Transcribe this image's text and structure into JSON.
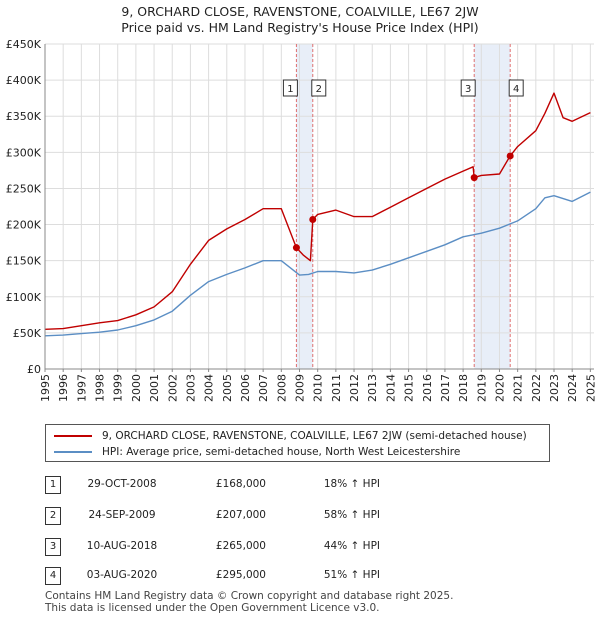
{
  "title_line1": "9, ORCHARD CLOSE, RAVENSTONE, COALVILLE, LE67 2JW",
  "title_line2": "Price paid vs. HM Land Registry's House Price Index (HPI)",
  "colors": {
    "property": "#c00000",
    "hpi": "#5b8ec4",
    "grid": "#dddddd",
    "marker_line": "#e07070",
    "shade": "#e8eef8"
  },
  "legend": {
    "property_label": "9, ORCHARD CLOSE, RAVENSTONE, COALVILLE, LE67 2JW (semi-detached house)",
    "hpi_label": "HPI: Average price, semi-detached house, North West Leicestershire"
  },
  "transactions": [
    {
      "num": "1",
      "date": "29-OCT-2008",
      "price": "£168,000",
      "hpi": "18% ↑ HPI"
    },
    {
      "num": "2",
      "date": "24-SEP-2009",
      "price": "£207,000",
      "hpi": "58% ↑ HPI"
    },
    {
      "num": "3",
      "date": "10-AUG-2018",
      "price": "£265,000",
      "hpi": "44% ↑ HPI"
    },
    {
      "num": "4",
      "date": "03-AUG-2020",
      "price": "£295,000",
      "hpi": "51% ↑ HPI"
    }
  ],
  "footer_line1": "Contains HM Land Registry data © Crown copyright and database right 2025.",
  "footer_line2": "This data is licensed under the Open Government Licence v3.0.",
  "chart_data": {
    "type": "line",
    "title": "9, ORCHARD CLOSE, RAVENSTONE, COALVILLE, LE67 2JW",
    "subtitle": "Price paid vs. HM Land Registry's House Price Index (HPI)",
    "xlabel": "",
    "ylabel": "",
    "xlim": [
      1995,
      2025.2
    ],
    "ylim": [
      0,
      450000
    ],
    "x_ticks": [
      1995,
      1996,
      1997,
      1998,
      1999,
      2000,
      2001,
      2002,
      2003,
      2004,
      2005,
      2006,
      2007,
      2008,
      2009,
      2010,
      2011,
      2012,
      2013,
      2014,
      2015,
      2016,
      2017,
      2018,
      2019,
      2020,
      2021,
      2022,
      2023,
      2024,
      2025
    ],
    "y_ticks": [
      0,
      50000,
      100000,
      150000,
      200000,
      250000,
      300000,
      350000,
      400000,
      450000
    ],
    "y_tick_labels": [
      "£0",
      "£50K",
      "£100K",
      "£150K",
      "£200K",
      "£250K",
      "£300K",
      "£350K",
      "£400K",
      "£450K"
    ],
    "grid": true,
    "sale_markers": [
      {
        "label": "1",
        "x": 2008.83,
        "y": 168000
      },
      {
        "label": "2",
        "x": 2009.73,
        "y": 207000
      },
      {
        "label": "3",
        "x": 2018.61,
        "y": 265000
      },
      {
        "label": "4",
        "x": 2020.59,
        "y": 295000
      }
    ],
    "shaded_ranges": [
      [
        2008.83,
        2009.73
      ],
      [
        2018.61,
        2020.59
      ]
    ],
    "series": [
      {
        "name": "9, ORCHARD CLOSE, RAVENSTONE, COALVILLE, LE67 2JW (semi-detached house)",
        "x": [
          1995,
          1996,
          1997,
          1998,
          1999,
          2000,
          2001,
          2002,
          2003,
          2004,
          2005,
          2006,
          2007,
          2008,
          2008.83,
          2009.2,
          2009.6,
          2009.73,
          2010,
          2011,
          2012,
          2013,
          2014,
          2015,
          2016,
          2017,
          2018,
          2018.55,
          2018.61,
          2019,
          2020,
          2020.59,
          2021,
          2022,
          2022.5,
          2023,
          2023.5,
          2024,
          2025
        ],
        "values": [
          55000,
          56000,
          60000,
          64000,
          67000,
          75000,
          86000,
          107000,
          145000,
          178000,
          194000,
          207000,
          222000,
          222000,
          168000,
          158000,
          150000,
          207000,
          214000,
          220000,
          211000,
          211000,
          224000,
          237000,
          250000,
          263000,
          274000,
          280000,
          265000,
          268000,
          270000,
          295000,
          308000,
          330000,
          354000,
          382000,
          348000,
          343000,
          355000
        ]
      },
      {
        "name": "HPI: Average price, semi-detached house, North West Leicestershire",
        "x": [
          1995,
          1996,
          1997,
          1998,
          1999,
          2000,
          2001,
          2002,
          2003,
          2004,
          2005,
          2006,
          2007,
          2008,
          2009,
          2009.5,
          2010,
          2011,
          2012,
          2013,
          2014,
          2015,
          2016,
          2017,
          2018,
          2019,
          2020,
          2021,
          2022,
          2022.5,
          2023,
          2024,
          2025
        ],
        "values": [
          46000,
          47000,
          49000,
          51000,
          54000,
          60000,
          68000,
          80000,
          102000,
          121000,
          131000,
          140000,
          150000,
          150000,
          130000,
          131000,
          135000,
          135000,
          133000,
          137000,
          145000,
          154000,
          163000,
          172000,
          183000,
          188000,
          195000,
          205000,
          222000,
          237000,
          240000,
          232000,
          245000
        ]
      }
    ]
  }
}
